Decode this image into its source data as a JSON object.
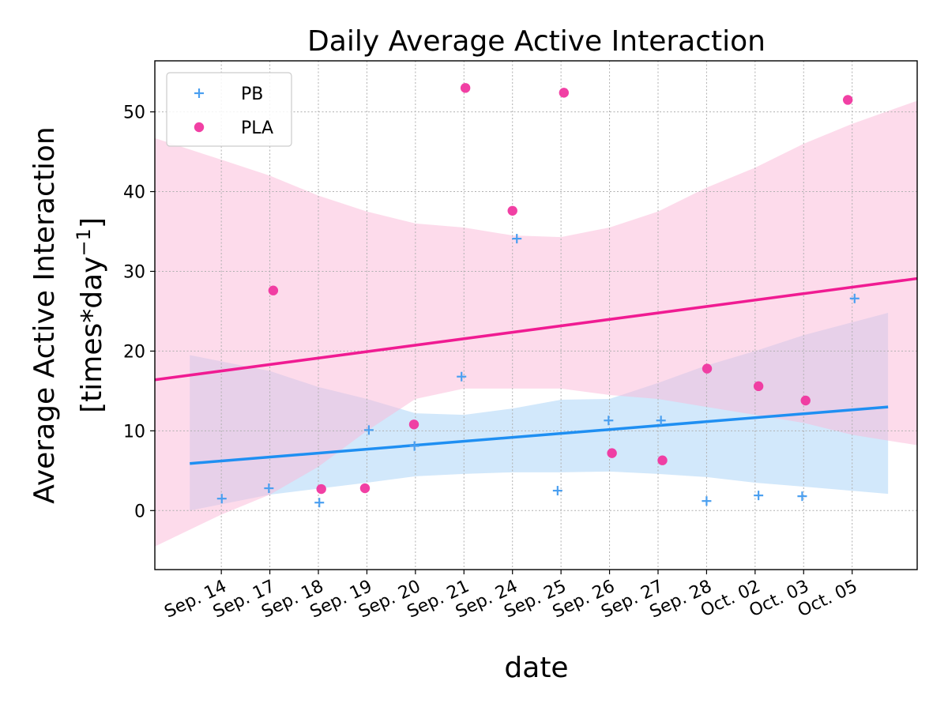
{
  "chart_data": {
    "type": "scatter",
    "title": "Daily Average Active Interaction",
    "xlabel": "date",
    "ylabel_line1": "Average Active Interaction",
    "ylabel_line2": "[times*day",
    "ylabel_exponent": "−1",
    "ylabel_close": "]",
    "categories": [
      "Sep. 14",
      "Sep. 17",
      "Sep. 18",
      "Sep. 19",
      "Sep. 20",
      "Sep. 21",
      "Sep. 24",
      "Sep. 25",
      "Sep. 26",
      "Sep. 27",
      "Sep. 28",
      "Oct. 02",
      "Oct. 03",
      "Oct. 05"
    ],
    "xlim": [
      -1.37,
      14.34
    ],
    "ylim": [
      -7.4,
      56.4
    ],
    "yticks": [
      0,
      10,
      20,
      30,
      40,
      50
    ],
    "grid": true,
    "legend": "top-left",
    "series": [
      {
        "name": "PB",
        "marker": "plus",
        "color": "#4a9ff0",
        "x": [
          0,
          1,
          2,
          3,
          4,
          5,
          6,
          7,
          8,
          9,
          10,
          11,
          12,
          13
        ],
        "y": [
          1.5,
          2.8,
          1.0,
          10.1,
          8.1,
          16.8,
          34.1,
          2.5,
          11.3,
          11.3,
          1.2,
          1.9,
          1.8,
          26.6
        ],
        "regression": {
          "x": [
            -0.65,
            13.74
          ],
          "y": [
            5.9,
            13.0
          ],
          "line_color": "#1f8ff2",
          "band_color": "#a6d1f7",
          "band_lower": [
            {
              "x": -0.65,
              "y": 0.0
            },
            {
              "x": 1.0,
              "y": 2.0
            },
            {
              "x": 3.0,
              "y": 3.5
            },
            {
              "x": 4.0,
              "y": 4.3
            },
            {
              "x": 5.0,
              "y": 4.6
            },
            {
              "x": 6.0,
              "y": 4.8
            },
            {
              "x": 7.0,
              "y": 4.8
            },
            {
              "x": 8.0,
              "y": 4.9
            },
            {
              "x": 9.0,
              "y": 4.6
            },
            {
              "x": 10.0,
              "y": 4.2
            },
            {
              "x": 11.0,
              "y": 3.5
            },
            {
              "x": 12.0,
              "y": 3.0
            },
            {
              "x": 13.74,
              "y": 2.1
            }
          ],
          "band_upper": [
            {
              "x": -0.65,
              "y": 19.5
            },
            {
              "x": 1.0,
              "y": 17.5
            },
            {
              "x": 2.0,
              "y": 15.5
            },
            {
              "x": 3.0,
              "y": 14.0
            },
            {
              "x": 4.0,
              "y": 12.2
            },
            {
              "x": 5.0,
              "y": 12.0
            },
            {
              "x": 6.0,
              "y": 12.8
            },
            {
              "x": 7.0,
              "y": 13.9
            },
            {
              "x": 8.0,
              "y": 14.0
            },
            {
              "x": 9.0,
              "y": 16.0
            },
            {
              "x": 10.0,
              "y": 18.2
            },
            {
              "x": 11.0,
              "y": 20.0
            },
            {
              "x": 12.0,
              "y": 22.0
            },
            {
              "x": 13.74,
              "y": 24.8
            }
          ]
        }
      },
      {
        "name": "PLA",
        "marker": "circle",
        "color": "#f0369f",
        "x": [
          1,
          2,
          3,
          4,
          5,
          6,
          7,
          8,
          9,
          10,
          11,
          12,
          13
        ],
        "y": [
          27.6,
          2.7,
          2.8,
          10.8,
          53.0,
          37.6,
          52.4,
          7.2,
          6.3,
          17.8,
          15.6,
          13.8,
          51.5
        ],
        "regression": {
          "x": [
            -1.37,
            14.34
          ],
          "y": [
            16.4,
            29.1
          ],
          "line_color": "#f01b92",
          "band_color": "#fbb8d8",
          "band_lower": [
            {
              "x": -1.37,
              "y": -4.5
            },
            {
              "x": 0.0,
              "y": -0.5
            },
            {
              "x": 1.0,
              "y": 2.0
            },
            {
              "x": 2.0,
              "y": 5.5
            },
            {
              "x": 3.0,
              "y": 10.0
            },
            {
              "x": 4.0,
              "y": 14.0
            },
            {
              "x": 5.0,
              "y": 15.3
            },
            {
              "x": 6.0,
              "y": 15.3
            },
            {
              "x": 7.0,
              "y": 15.3
            },
            {
              "x": 8.0,
              "y": 14.5
            },
            {
              "x": 9.0,
              "y": 14.0
            },
            {
              "x": 10.0,
              "y": 13.0
            },
            {
              "x": 11.0,
              "y": 12.0
            },
            {
              "x": 12.0,
              "y": 11.0
            },
            {
              "x": 13.0,
              "y": 9.5
            },
            {
              "x": 14.34,
              "y": 8.2
            }
          ],
          "band_upper": [
            {
              "x": -1.37,
              "y": 46.7
            },
            {
              "x": 0.0,
              "y": 44.0
            },
            {
              "x": 1.0,
              "y": 42.0
            },
            {
              "x": 2.0,
              "y": 39.5
            },
            {
              "x": 3.0,
              "y": 37.5
            },
            {
              "x": 4.0,
              "y": 36.0
            },
            {
              "x": 5.0,
              "y": 35.5
            },
            {
              "x": 6.0,
              "y": 34.5
            },
            {
              "x": 7.0,
              "y": 34.3
            },
            {
              "x": 8.0,
              "y": 35.5
            },
            {
              "x": 9.0,
              "y": 37.5
            },
            {
              "x": 10.0,
              "y": 40.5
            },
            {
              "x": 11.0,
              "y": 43.0
            },
            {
              "x": 12.0,
              "y": 46.0
            },
            {
              "x": 13.0,
              "y": 48.5
            },
            {
              "x": 14.34,
              "y": 51.4
            }
          ]
        }
      }
    ]
  }
}
